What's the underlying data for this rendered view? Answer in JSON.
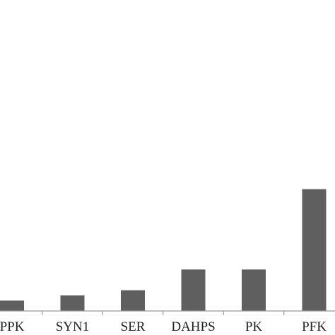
{
  "chart_data": {
    "type": "bar",
    "title": "",
    "xlabel": "",
    "ylabel": "",
    "categories": [
      "PPK",
      "SYN1",
      "SER",
      "DAHPS",
      "PK",
      "PFK"
    ],
    "values": [
      2.0,
      3.0,
      4.0,
      8.0,
      8.0,
      23.5
    ],
    "ylim": [
      0,
      60
    ],
    "grid": false,
    "colors": {
      "bar": "#5f5f5f",
      "axis": "#999999",
      "text": "#222222"
    }
  }
}
